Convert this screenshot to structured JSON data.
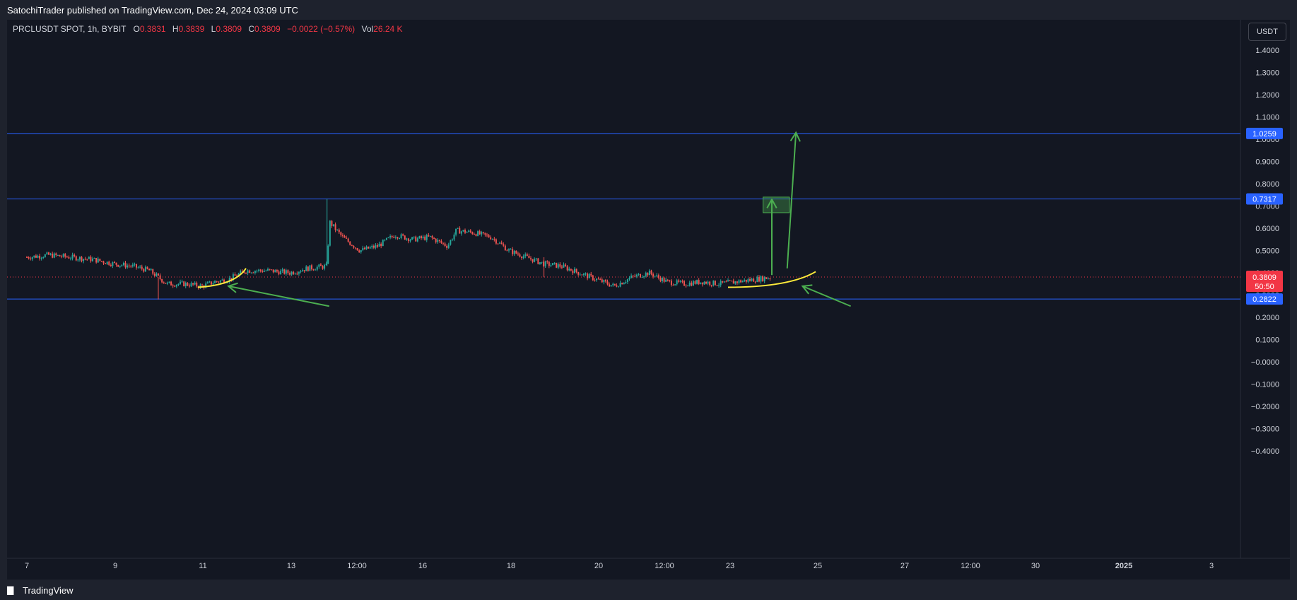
{
  "header": {
    "publish_line": "SatochiTrader published on TradingView.com, Dec 24, 2024 03:09 UTC"
  },
  "legend": {
    "symbol": "PRCLUSDT SPOT, 1h, BYBIT",
    "o_label": "O",
    "o_value": "0.3831",
    "h_label": "H",
    "h_value": "0.3839",
    "l_label": "L",
    "l_value": "0.3809",
    "c_label": "C",
    "c_value": "0.3809",
    "change": "−0.0022 (−0.57%)",
    "vol_label": "Vol",
    "vol_value": "26.24 K"
  },
  "currency_button": "USDT",
  "footer": {
    "brand": "TradingView"
  },
  "colors": {
    "background": "#131722",
    "frame": "#1e222d",
    "up": "#26a69a",
    "down": "#ef5350",
    "hline": "#2962ff",
    "arrow": "#4caf50",
    "curve": "#ffeb3b",
    "price_badge": "#f23645"
  },
  "chart_data": {
    "type": "candlestick",
    "symbol": "PRCLUSDT",
    "interval": "1h",
    "exchange": "BYBIT",
    "y_axis": {
      "ticks": [
        "1.4000",
        "1.3000",
        "1.2000",
        "1.1000",
        "1.0000",
        "0.9000",
        "0.8000",
        "0.7000",
        "0.6000",
        "0.5000",
        "0.4000",
        "0.3000",
        "0.2000",
        "0.1000",
        "−0.0000",
        "−0.1000",
        "−0.2000",
        "−0.3000",
        "−0.4000"
      ],
      "range": [
        -0.45,
        1.45
      ]
    },
    "x_axis": {
      "ticks": [
        "7",
        "9",
        "11",
        "13",
        "12:00",
        "16",
        "18",
        "20",
        "12:00",
        "23",
        "25",
        "27",
        "12:00",
        "30",
        "2025",
        "3"
      ],
      "bold_ticks": [
        "2025"
      ]
    },
    "horizontal_levels": [
      {
        "label": "1.0259",
        "value": 1.0259
      },
      {
        "label": "0.7317",
        "value": 0.7317
      },
      {
        "label": "0.2822",
        "value": 0.2822
      }
    ],
    "last_price": {
      "label": "0.3809",
      "value": 0.3809,
      "countdown": "50:50"
    },
    "price_path": [
      {
        "x": 7.0,
        "y": 0.47
      },
      {
        "x": 7.5,
        "y": 0.48
      },
      {
        "x": 8.0,
        "y": 0.47
      },
      {
        "x": 8.5,
        "y": 0.46
      },
      {
        "x": 9.0,
        "y": 0.44
      },
      {
        "x": 9.4,
        "y": 0.43
      },
      {
        "x": 9.8,
        "y": 0.41
      },
      {
        "x": 10.0,
        "y": 0.38
      },
      {
        "x": 10.2,
        "y": 0.35
      },
      {
        "x": 10.6,
        "y": 0.35
      },
      {
        "x": 11.0,
        "y": 0.34
      },
      {
        "x": 11.3,
        "y": 0.36
      },
      {
        "x": 11.6,
        "y": 0.37
      },
      {
        "x": 12.0,
        "y": 0.41
      },
      {
        "x": 12.5,
        "y": 0.41
      },
      {
        "x": 13.0,
        "y": 0.4
      },
      {
        "x": 13.4,
        "y": 0.42
      },
      {
        "x": 13.85,
        "y": 0.43
      },
      {
        "x": 13.9,
        "y": 0.63
      },
      {
        "x": 14.2,
        "y": 0.56
      },
      {
        "x": 14.6,
        "y": 0.5
      },
      {
        "x": 15.0,
        "y": 0.52
      },
      {
        "x": 15.4,
        "y": 0.57
      },
      {
        "x": 15.8,
        "y": 0.55
      },
      {
        "x": 16.2,
        "y": 0.56
      },
      {
        "x": 16.6,
        "y": 0.52
      },
      {
        "x": 16.8,
        "y": 0.59
      },
      {
        "x": 17.2,
        "y": 0.58
      },
      {
        "x": 17.6,
        "y": 0.56
      },
      {
        "x": 18.0,
        "y": 0.5
      },
      {
        "x": 18.4,
        "y": 0.47
      },
      {
        "x": 18.8,
        "y": 0.44
      },
      {
        "x": 19.2,
        "y": 0.43
      },
      {
        "x": 19.6,
        "y": 0.4
      },
      {
        "x": 20.0,
        "y": 0.37
      },
      {
        "x": 20.4,
        "y": 0.34
      },
      {
        "x": 20.8,
        "y": 0.38
      },
      {
        "x": 21.2,
        "y": 0.4
      },
      {
        "x": 21.6,
        "y": 0.36
      },
      {
        "x": 22.0,
        "y": 0.35
      },
      {
        "x": 22.4,
        "y": 0.36
      },
      {
        "x": 22.8,
        "y": 0.35
      },
      {
        "x": 23.2,
        "y": 0.36
      },
      {
        "x": 23.6,
        "y": 0.37
      },
      {
        "x": 24.0,
        "y": 0.38
      }
    ],
    "annotations": {
      "spike_up": {
        "x": 13.85,
        "value": 0.7317
      },
      "wick_down": {
        "x": 10.0,
        "value": 0.28
      },
      "wick_18": {
        "x": 18.8,
        "value": 0.38
      },
      "target_box": {
        "x0": 23.8,
        "x1": 24.4,
        "y0": 0.67,
        "y1": 0.74
      },
      "vertical_arrow": {
        "x": 24.0,
        "from": 0.39,
        "to": 0.73
      },
      "tall_arrow": {
        "x0": 24.35,
        "y0": 0.42,
        "x1": 24.55,
        "y1": 1.03
      },
      "left_pointer": {
        "x0": 13.9,
        "y0": 0.25,
        "x1": 11.6,
        "y1": 0.34
      },
      "right_pointer": {
        "x0": 25.8,
        "y0": 0.25,
        "x1": 24.7,
        "y1": 0.34
      },
      "left_curve": {
        "x0": 10.9,
        "x1": 12.0
      },
      "right_curve": {
        "x0": 23.0,
        "x1": 25.0
      }
    }
  }
}
